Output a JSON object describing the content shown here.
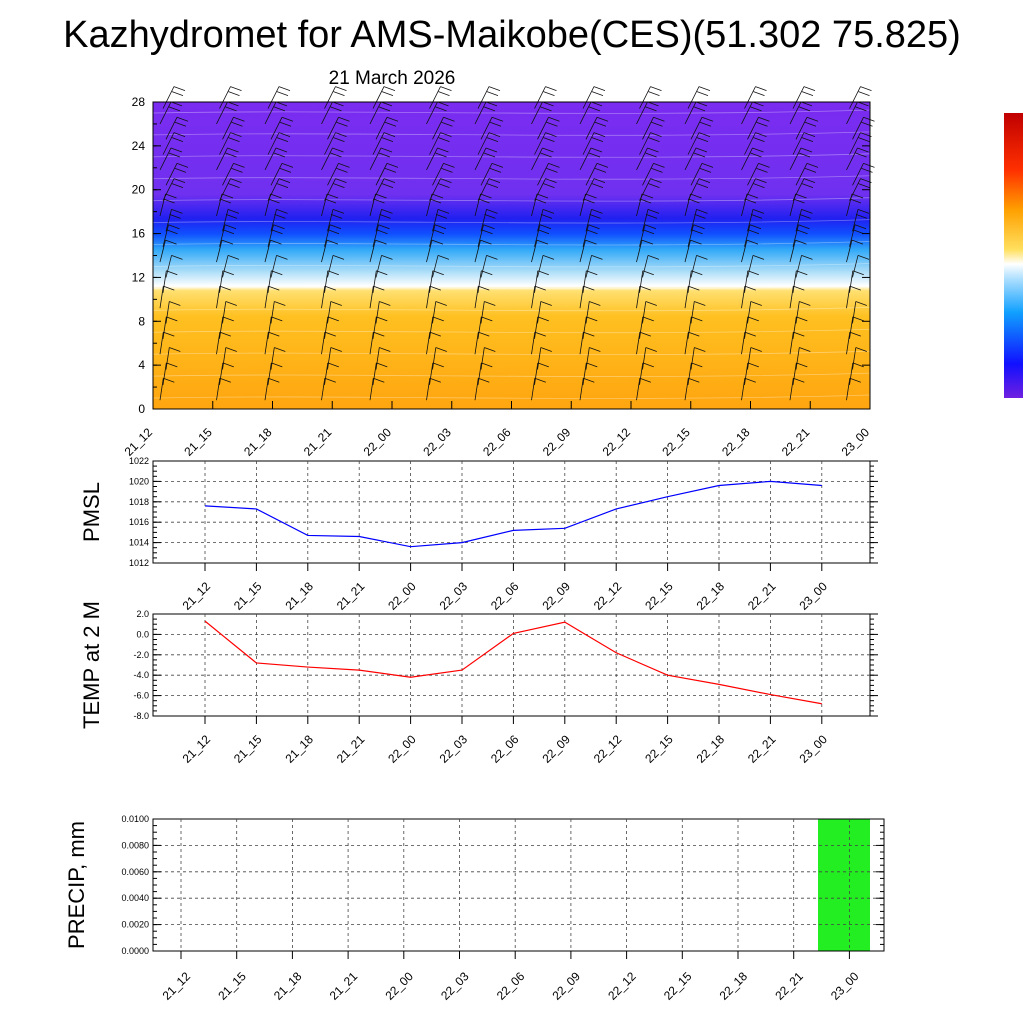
{
  "title": "Kazhydromet for AMS-Maikobe(CES)(51.302 75.825)",
  "subtitle": "21 March 2026",
  "time_labels": [
    "21_12",
    "21_15",
    "21_18",
    "21_21",
    "22_00",
    "22_03",
    "22_06",
    "22_09",
    "22_12",
    "22_15",
    "22_18",
    "22_21",
    "23_00"
  ],
  "colors": {
    "pmsl_line": "#0000ff",
    "temp_line": "#ff0000",
    "precip_bar": "#22ee22"
  },
  "chart_data": [
    {
      "type": "heatmap",
      "name": "cross-section",
      "y_ticks": [
        "0",
        "4",
        "8",
        "12",
        "16",
        "20",
        "24",
        "28"
      ],
      "ylim": [
        0,
        28
      ],
      "x": [
        "21_12",
        "21_15",
        "21_18",
        "21_21",
        "22_00",
        "22_03",
        "22_06",
        "22_09",
        "22_12",
        "22_15",
        "22_18",
        "22_21",
        "23_00"
      ],
      "layers": [
        {
          "from": 0,
          "to": 11,
          "color": "#ffb41e"
        },
        {
          "from": 11,
          "to": 14,
          "color": "#a8d8f8"
        },
        {
          "from": 14,
          "to": 18,
          "color": "#2030ff"
        },
        {
          "from": 18,
          "to": 28,
          "color": "#7a2cf0"
        }
      ],
      "wind_barbs": true
    },
    {
      "type": "line",
      "name": "pmsl",
      "ylabel": "PMSL",
      "ylim": [
        1012,
        1022
      ],
      "y_ticks": [
        "1012",
        "1014",
        "1016",
        "1018",
        "1020",
        "1022"
      ],
      "x": [
        "21_12",
        "21_15",
        "21_18",
        "21_21",
        "22_00",
        "22_03",
        "22_06",
        "22_09",
        "22_12",
        "22_15",
        "22_18",
        "22_21",
        "23_00"
      ],
      "values": [
        1017.6,
        1017.3,
        1014.7,
        1014.6,
        1013.6,
        1014.0,
        1015.2,
        1015.4,
        1017.3,
        1018.5,
        1019.6,
        1020.0,
        1019.6
      ]
    },
    {
      "type": "line",
      "name": "temp",
      "ylabel": "TEMP at 2 M",
      "ylim": [
        -8.0,
        2.0
      ],
      "y_ticks": [
        "-8.0",
        "-6.0",
        "-4.0",
        "-2.0",
        "0.0",
        "2.0"
      ],
      "x": [
        "21_12",
        "21_15",
        "21_18",
        "21_21",
        "22_00",
        "22_03",
        "22_06",
        "22_09",
        "22_12",
        "22_15",
        "22_18",
        "22_21",
        "23_00"
      ],
      "values": [
        1.3,
        -2.8,
        -3.2,
        -3.5,
        -4.2,
        -3.5,
        0.1,
        1.2,
        -1.8,
        -4.0,
        -4.9,
        -5.9,
        -6.8
      ]
    },
    {
      "type": "bar",
      "name": "precip",
      "ylabel": "PRECIP, mm",
      "ylim": [
        0,
        0.01
      ],
      "y_ticks": [
        "0.0000",
        "0.0020",
        "0.0040",
        "0.0060",
        "0.0080",
        "0.0100"
      ],
      "categories": [
        "21_12",
        "21_15",
        "21_18",
        "21_21",
        "22_00",
        "22_03",
        "22_06",
        "22_09",
        "22_12",
        "22_15",
        "22_18",
        "22_21",
        "23_00"
      ],
      "values": [
        0,
        0,
        0,
        0,
        0,
        0,
        0,
        0,
        0,
        0,
        0,
        0,
        0.01
      ]
    }
  ]
}
